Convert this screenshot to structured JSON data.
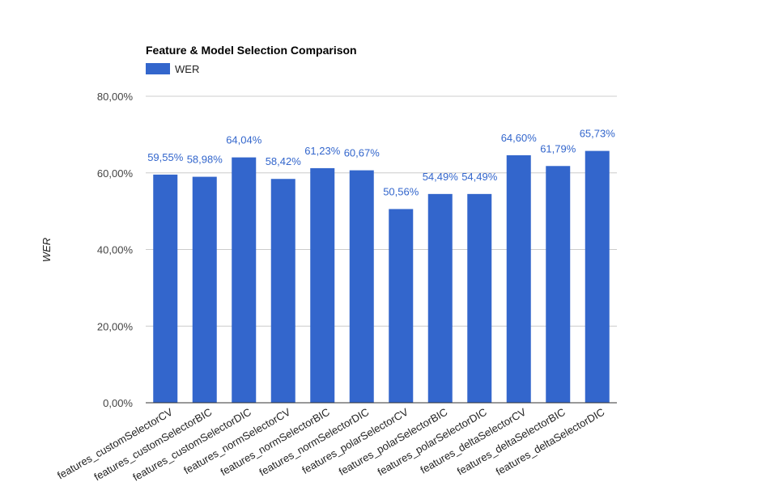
{
  "chart_data": {
    "type": "bar",
    "title": "Feature & Model Selection Comparison",
    "ylabel": "WER",
    "xlabel": "",
    "legend": {
      "position": "top-left",
      "entries": [
        "WER"
      ]
    },
    "ylim": [
      0,
      80
    ],
    "yticks": [
      0,
      20,
      40,
      60,
      80
    ],
    "ytick_labels": [
      "0,00%",
      "20,00%",
      "40,00%",
      "60,00%",
      "80,00%"
    ],
    "grid": true,
    "categories": [
      "features_customSelectorCV",
      "features_customSelectorBIC",
      "features_customSelectorDIC",
      "features_normSelectorCV",
      "features_normSelectorBIC",
      "features_normSelectorDIC",
      "features_polarSelectorCV",
      "features_polarSelectorBIC",
      "features_polarSelectorDIC",
      "features_deltaSelectorCV",
      "features_deltaSelectorBIC",
      "features_deltaSelectorDIC"
    ],
    "series": [
      {
        "name": "WER",
        "color": "#3366cc",
        "values": [
          59.55,
          58.98,
          64.04,
          58.42,
          61.23,
          60.67,
          50.56,
          54.49,
          54.49,
          64.6,
          61.79,
          65.73
        ],
        "labels": [
          "59,55%",
          "58,98%",
          "64,04%",
          "58,42%",
          "61,23%",
          "60,67%",
          "50,56%",
          "54,49%",
          "54,49%",
          "64,60%",
          "61,79%",
          "65,73%"
        ]
      }
    ]
  }
}
